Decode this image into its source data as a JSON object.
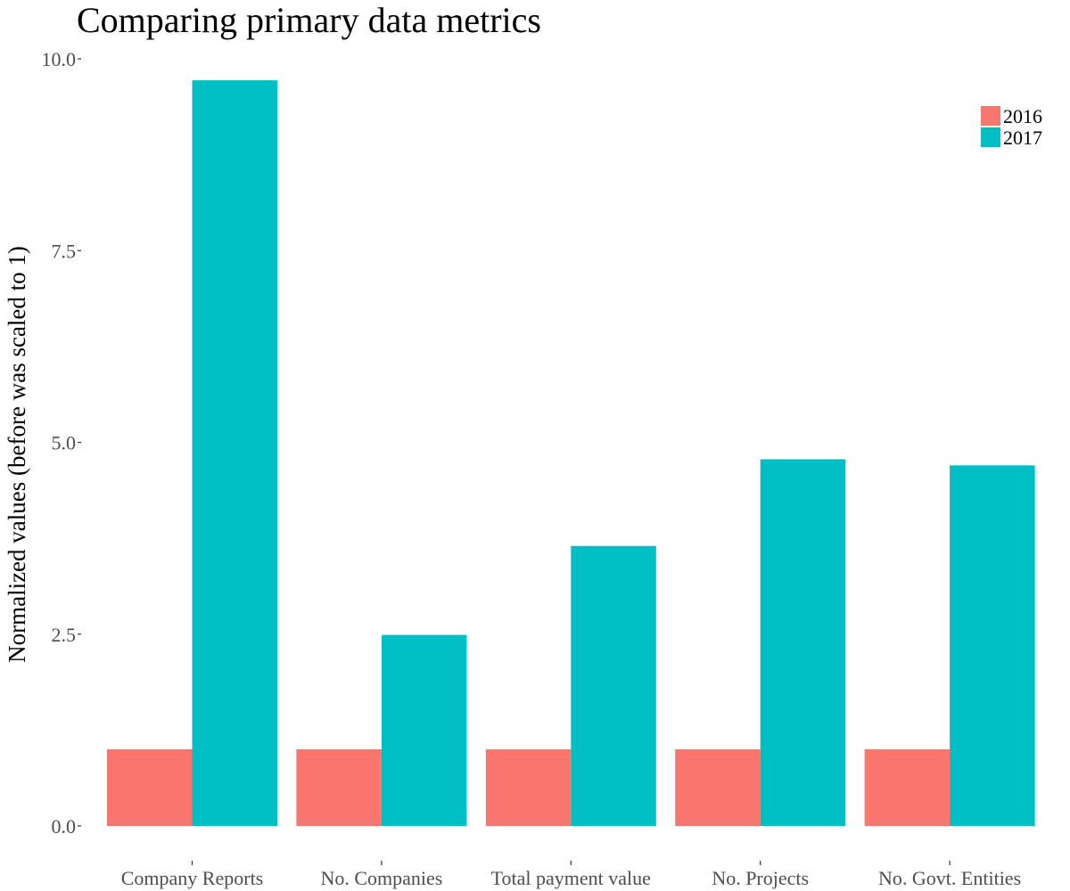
{
  "chart_data": {
    "type": "bar",
    "title": "Comparing primary data metrics",
    "xlabel": "",
    "ylabel": "Normalized values (before was scaled to 1)",
    "categories": [
      "Company Reports",
      "No. Companies",
      "Total payment value",
      "No. Projects",
      "No. Govt. Entities"
    ],
    "series": [
      {
        "name": "2016",
        "color": "#F8766D",
        "values": [
          1.0,
          1.0,
          1.0,
          1.0,
          1.0
        ]
      },
      {
        "name": "2017",
        "color": "#00BFC4",
        "values": [
          9.72,
          2.49,
          3.65,
          4.78,
          4.7
        ]
      }
    ],
    "ylim": [
      0,
      10
    ],
    "yticks": [
      0.0,
      2.5,
      5.0,
      7.5,
      10.0
    ],
    "ytick_labels": [
      "0.0",
      "2.5",
      "5.0",
      "7.5",
      "10.0"
    ],
    "grid": false,
    "legend_position": "top-right"
  }
}
